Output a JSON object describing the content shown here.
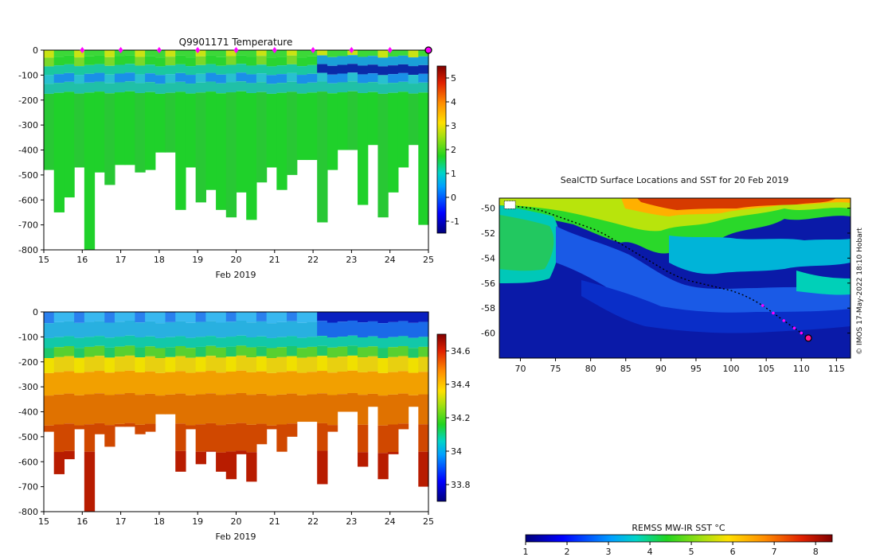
{
  "chart_data": [
    {
      "type": "heatmap",
      "title": "Q9901171  Temperature",
      "xlabel": "Feb 2019",
      "ylabel": "",
      "xlim": [
        15,
        25
      ],
      "ylim": [
        -800,
        0
      ],
      "x_ticks": [
        "15",
        "16",
        "17",
        "18",
        "19",
        "20",
        "21",
        "22",
        "23",
        "24",
        "25"
      ],
      "y_ticks": [
        "0",
        "-100",
        "-200",
        "-300",
        "-400",
        "-500",
        "-600",
        "-700",
        "-800"
      ],
      "colorbar": {
        "min": -1.5,
        "max": 5.5,
        "ticks": [
          "-1",
          "0",
          "1",
          "2",
          "3",
          "4",
          "5"
        ]
      },
      "profile_markers_day": [
        16,
        17,
        18,
        19,
        20,
        21,
        22,
        23,
        24
      ],
      "last_position_day": 25,
      "profile_max_depth": [
        -480,
        -650,
        -590,
        -470,
        -800,
        -490,
        -540,
        -460,
        -460,
        -490,
        -480,
        -410,
        -410,
        -640,
        -470,
        -610,
        -560,
        -640,
        -670,
        -570,
        -680,
        -530,
        -470,
        -560,
        -500,
        -440,
        -440,
        -690,
        -480,
        -400,
        -400,
        -620,
        -380,
        -670,
        -570,
        -470,
        -380,
        -700
      ]
    },
    {
      "type": "heatmap",
      "title": "",
      "xlabel": "Feb 2019",
      "ylabel": "",
      "xlim": [
        15,
        25
      ],
      "ylim": [
        -800,
        0
      ],
      "x_ticks": [
        "15",
        "16",
        "17",
        "18",
        "19",
        "20",
        "21",
        "22",
        "23",
        "24",
        "25"
      ],
      "y_ticks": [
        "0",
        "-100",
        "-200",
        "-300",
        "-400",
        "-500",
        "-600",
        "-700",
        "-800"
      ],
      "colorbar": {
        "min": 33.7,
        "max": 34.7,
        "ticks": [
          "33.8",
          "34",
          "34.2",
          "34.4",
          "34.6"
        ]
      },
      "profile_max_depth": [
        -480,
        -650,
        -590,
        -470,
        -800,
        -490,
        -540,
        -460,
        -460,
        -490,
        -480,
        -410,
        -410,
        -640,
        -470,
        -610,
        -560,
        -640,
        -670,
        -570,
        -680,
        -530,
        -470,
        -560,
        -500,
        -440,
        -440,
        -690,
        -480,
        -400,
        -400,
        -620,
        -380,
        -670,
        -570,
        -470,
        -380,
        -700
      ]
    },
    {
      "type": "scatter",
      "title": "SealCTD Surface Locations and SST for 20 Feb 2019",
      "xlabel": "",
      "ylabel": "",
      "xlim": [
        67,
        117
      ],
      "ylim": [
        -62,
        -49.2
      ],
      "x_ticks": [
        "70",
        "75",
        "80",
        "85",
        "90",
        "95",
        "100",
        "105",
        "110",
        "115"
      ],
      "y_ticks": [
        "-50",
        "-52",
        "-54",
        "-56",
        "-58",
        "-60"
      ],
      "side_label": "© IMOS 17-May-2022 18:10 Hobart",
      "colorbar": {
        "label": "REMSS MW-IR SST °C",
        "min": 1,
        "max": 8.4,
        "ticks": [
          "1",
          "2",
          "3",
          "4",
          "5",
          "6",
          "7",
          "8"
        ]
      },
      "track_lon": [
        68.5,
        70,
        71.5,
        73,
        74.5,
        76,
        77.5,
        79,
        80.5,
        82,
        83.5,
        85,
        86.5,
        88,
        89.5,
        91,
        92.5,
        94,
        95.5,
        97,
        98.5,
        100,
        101.5,
        103,
        104.5,
        106,
        107.5,
        109,
        110,
        111
      ],
      "track_lat": [
        -49.8,
        -49.9,
        -50.0,
        -50.2,
        -50.5,
        -50.8,
        -51.1,
        -51.4,
        -51.7,
        -52.1,
        -52.6,
        -53.1,
        -53.6,
        -54.1,
        -54.6,
        -55.1,
        -55.5,
        -55.8,
        -56.0,
        -56.2,
        -56.4,
        -56.6,
        -56.9,
        -57.3,
        -57.8,
        -58.4,
        -59.0,
        -59.6,
        -60.0,
        -60.4
      ],
      "recent_from_index": 24,
      "current_position": {
        "lon": 111,
        "lat": -60.4
      }
    }
  ]
}
